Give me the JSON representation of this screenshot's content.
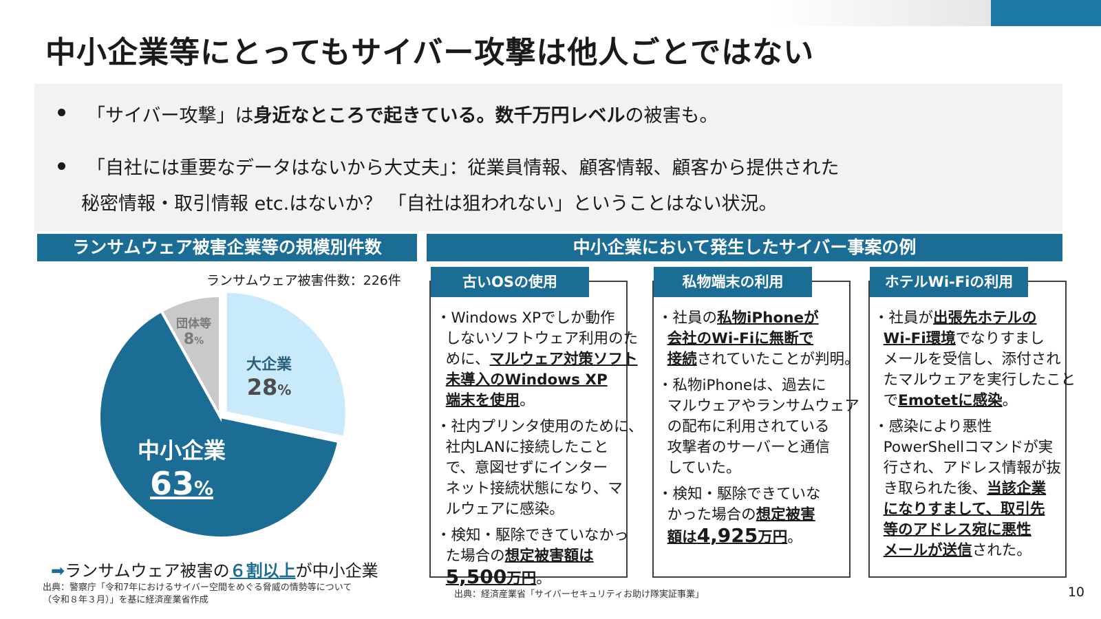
{
  "title": "中小企業等にとってもサイバー攻撃は他人ごとではない",
  "bullets": [
    {
      "segments": [
        {
          "text": "「サイバー攻撃」は",
          "bold": false
        },
        {
          "text": "身近なところで起きている。数千万円レベル",
          "bold": true
        },
        {
          "text": "の被害も。",
          "bold": false
        }
      ]
    },
    {
      "line1": "「自社には重要なデータはないから大丈夫」：従業員情報、顧客情報、顧客から提供された",
      "line2": "秘密情報・取引情報 etc.はないか？ 「自社は狙われない」ということはない状況。"
    }
  ],
  "left_panel": {
    "header": "ランサムウェア被害企業等の規模別件数",
    "total": "ランサムウェア被害件数：226件",
    "conclusion_prefix": "ランサムウェア被害の",
    "conclusion_highlight": "６割以上",
    "conclusion_suffix": "が中小企業",
    "source_line1": "出典：警察庁「令和7年におけるサイバー空間をめぐる脅威の情勢等について",
    "source_line2": "（令和８年３月）」を基に経済産業省作成"
  },
  "chart_data": {
    "type": "pie",
    "title": "",
    "slices": [
      {
        "label": "大企業",
        "value": 28,
        "display": "28",
        "unit": "%",
        "color": "#c8eafb"
      },
      {
        "label": "中小企業",
        "value": 63,
        "display": "63",
        "unit": "%",
        "color": "#1c6d95"
      },
      {
        "label": "団体等",
        "value": 8,
        "display": "8",
        "unit": "%",
        "color": "#c9c9c9"
      }
    ]
  },
  "right_panel": {
    "header": "中小企業において発生したサイバー事案の例",
    "source": "出典：経済産業省「サイバーセキュリティお助け隊実証事業」"
  },
  "cases": [
    {
      "tab": "古いOSの使用"
    },
    {
      "tab": "私物端末の利用"
    },
    {
      "tab": "ホテルWi-Fiの利用"
    }
  ],
  "page_number": "10",
  "colors": {
    "accent": "#1c6d95",
    "light": "#c8eafb",
    "gray": "#c9c9c9"
  }
}
